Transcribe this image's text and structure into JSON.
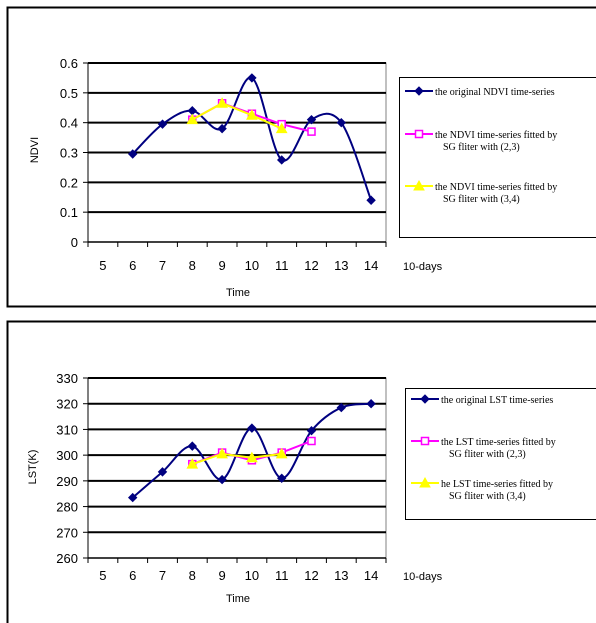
{
  "chart_data": [
    {
      "type": "line",
      "title": "",
      "xlabel": "Time",
      "xunit": "10-days",
      "ylabel": "NDVI",
      "ylim": [
        0,
        0.6
      ],
      "yticks": [
        "0",
        "0.1",
        "0.2",
        "0.3",
        "0.4",
        "0.5",
        "0.6"
      ],
      "xticks": [
        "5",
        "6",
        "7",
        "8",
        "9",
        "10",
        "11",
        "12",
        "13",
        "14"
      ],
      "grid": "horizontal",
      "legend_position": "right",
      "series": [
        {
          "name": "the original NDVI time-series",
          "color": "#000080",
          "marker": "diamond",
          "smooth": true,
          "x": [
            6,
            7,
            8,
            9,
            10,
            11,
            12,
            13,
            14
          ],
          "values": [
            0.295,
            0.395,
            0.44,
            0.38,
            0.55,
            0.275,
            0.41,
            0.4,
            0.14
          ]
        },
        {
          "name": "the NDVI time-series fitted by SG fliter with (2,3)",
          "color": "#FF00FF",
          "marker": "square",
          "smooth": false,
          "x": [
            8,
            9,
            10,
            11,
            12
          ],
          "values": [
            0.41,
            0.465,
            0.43,
            0.395,
            0.37
          ]
        },
        {
          "name": "the NDVI time-series fitted by SG fliter with (3,4)",
          "color": "#FFFF00",
          "marker": "triangle",
          "smooth": false,
          "x": [
            8,
            9,
            10,
            11
          ],
          "values": [
            0.41,
            0.465,
            0.425,
            0.38
          ]
        }
      ]
    },
    {
      "type": "line",
      "title": "",
      "xlabel": "Time",
      "xunit": "10-days",
      "ylabel": "LST(K)",
      "ylim": [
        260,
        330
      ],
      "yticks": [
        "260",
        "270",
        "280",
        "290",
        "300",
        "310",
        "320",
        "330"
      ],
      "xticks": [
        "5",
        "6",
        "7",
        "8",
        "9",
        "10",
        "11",
        "12",
        "13",
        "14"
      ],
      "grid": "horizontal",
      "legend_position": "right",
      "series": [
        {
          "name": "the original LST time-series",
          "color": "#000080",
          "marker": "diamond",
          "smooth": true,
          "x": [
            6,
            7,
            8,
            9,
            10,
            11,
            12,
            13,
            14
          ],
          "values": [
            283.5,
            293.5,
            303.5,
            290.5,
            310.5,
            291,
            309.5,
            318.5,
            320
          ]
        },
        {
          "name": "the LST time-series fitted by SG fliter with (2,3)",
          "color": "#FF00FF",
          "marker": "square",
          "smooth": false,
          "x": [
            8,
            9,
            10,
            11,
            12
          ],
          "values": [
            296.5,
            301,
            298,
            301,
            305.5
          ]
        },
        {
          "name": "he LST time-series fitted by SG fliter with (3,4)",
          "color": "#FFFF00",
          "marker": "triangle",
          "smooth": false,
          "x": [
            8,
            9,
            10,
            11
          ],
          "values": [
            296.5,
            300.5,
            299,
            300.5
          ]
        }
      ]
    }
  ]
}
